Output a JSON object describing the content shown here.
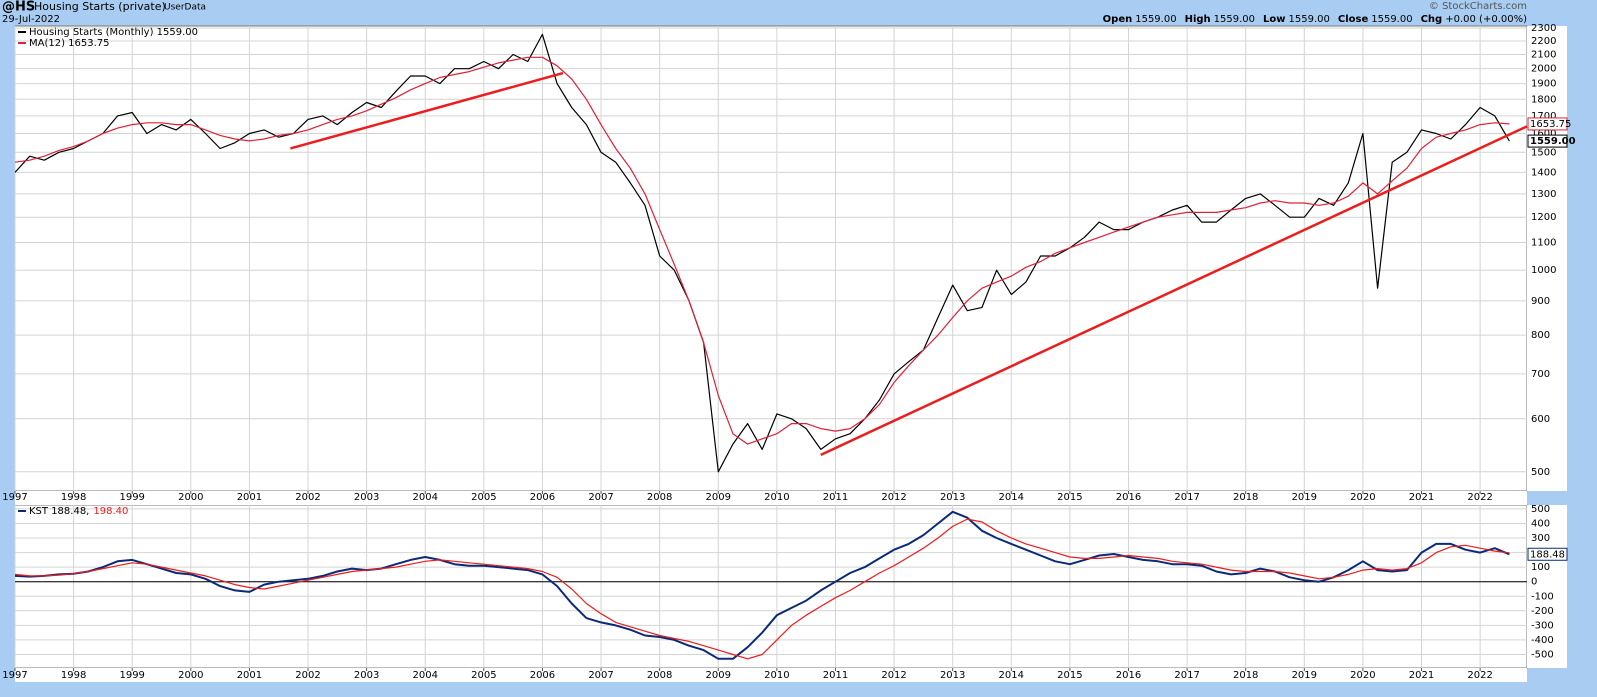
{
  "header": {
    "symbol": "@HS",
    "name": "Housing Starts (private)",
    "source": "UserData",
    "date": "29-Jul-2022",
    "brand": "© StockCharts.com",
    "quote": [
      {
        "label": "Open",
        "value": "1559.00"
      },
      {
        "label": "High",
        "value": "1559.00"
      },
      {
        "label": "Low",
        "value": "1559.00"
      },
      {
        "label": "Close",
        "value": "1559.00"
      },
      {
        "label": "Chg",
        "value": "+0.00 (+0.00%)"
      }
    ]
  },
  "chart_data": [
    {
      "type": "line",
      "log_scale": true,
      "grid": true,
      "x": [
        1997,
        1997.25,
        1997.5,
        1997.75,
        1998,
        1998.25,
        1998.5,
        1998.75,
        1999,
        1999.25,
        1999.5,
        1999.75,
        2000,
        2000.25,
        2000.5,
        2000.75,
        2001,
        2001.25,
        2001.5,
        2001.75,
        2002,
        2002.25,
        2002.5,
        2002.75,
        2003,
        2003.25,
        2003.5,
        2003.75,
        2004,
        2004.25,
        2004.5,
        2004.75,
        2005,
        2005.25,
        2005.5,
        2005.75,
        2006,
        2006.25,
        2006.5,
        2006.75,
        2007,
        2007.25,
        2007.5,
        2007.75,
        2008,
        2008.25,
        2008.5,
        2008.75,
        2009,
        2009.25,
        2009.5,
        2009.75,
        2010,
        2010.25,
        2010.5,
        2010.75,
        2011,
        2011.25,
        2011.5,
        2011.75,
        2012,
        2012.25,
        2012.5,
        2012.75,
        2013,
        2013.25,
        2013.5,
        2013.75,
        2014,
        2014.25,
        2014.5,
        2014.75,
        2015,
        2015.25,
        2015.5,
        2015.75,
        2016,
        2016.25,
        2016.5,
        2016.75,
        2017,
        2017.25,
        2017.5,
        2017.75,
        2018,
        2018.25,
        2018.5,
        2018.75,
        2019,
        2019.25,
        2019.5,
        2019.75,
        2020,
        2020.25,
        2020.5,
        2020.75,
        2021,
        2021.25,
        2021.5,
        2021.75,
        2022,
        2022.25,
        2022.5
      ],
      "xlim": [
        1997,
        2022.8
      ],
      "xticks": [
        1997,
        1998,
        1999,
        2000,
        2001,
        2002,
        2003,
        2004,
        2005,
        2006,
        2007,
        2008,
        2009,
        2010,
        2011,
        2012,
        2013,
        2014,
        2015,
        2016,
        2017,
        2018,
        2019,
        2020,
        2021,
        2022
      ],
      "ylim": [
        468,
        2316
      ],
      "yticks": [
        500,
        600,
        700,
        800,
        900,
        1000,
        1100,
        1200,
        1300,
        1400,
        1500,
        1600,
        1700,
        1800,
        1900,
        2000,
        2100,
        2200,
        2300
      ],
      "series": [
        {
          "name": "Housing Starts (Monthly) 1559.00",
          "color": "#000000",
          "last_label": "1559.00",
          "values": [
            1400,
            1480,
            1460,
            1500,
            1520,
            1560,
            1600,
            1700,
            1720,
            1600,
            1650,
            1620,
            1680,
            1600,
            1520,
            1550,
            1600,
            1620,
            1580,
            1600,
            1680,
            1700,
            1650,
            1720,
            1780,
            1750,
            1850,
            1950,
            1950,
            1900,
            2000,
            2000,
            2050,
            2000,
            2100,
            2050,
            2250,
            1900,
            1750,
            1650,
            1500,
            1450,
            1350,
            1250,
            1050,
            1000,
            900,
            780,
            500,
            550,
            590,
            540,
            610,
            600,
            580,
            540,
            560,
            570,
            600,
            640,
            700,
            730,
            760,
            850,
            950,
            870,
            880,
            1000,
            920,
            960,
            1050,
            1050,
            1080,
            1120,
            1180,
            1150,
            1150,
            1180,
            1200,
            1230,
            1250,
            1180,
            1180,
            1230,
            1280,
            1300,
            1250,
            1200,
            1200,
            1280,
            1250,
            1350,
            1600,
            940,
            1450,
            1500,
            1620,
            1600,
            1570,
            1650,
            1750,
            1700,
            1559
          ]
        },
        {
          "name": "MA(12) 1653.75",
          "color": "#e0203c",
          "last_label": "1653.75",
          "values": [
            1450,
            1460,
            1480,
            1510,
            1530,
            1560,
            1600,
            1630,
            1650,
            1660,
            1660,
            1650,
            1650,
            1620,
            1590,
            1570,
            1560,
            1570,
            1590,
            1600,
            1620,
            1650,
            1680,
            1700,
            1730,
            1770,
            1810,
            1860,
            1900,
            1940,
            1960,
            1980,
            2010,
            2040,
            2060,
            2080,
            2080,
            2020,
            1930,
            1800,
            1650,
            1520,
            1420,
            1300,
            1150,
            1020,
            900,
            780,
            650,
            570,
            550,
            560,
            570,
            590,
            590,
            580,
            575,
            580,
            600,
            630,
            680,
            720,
            760,
            800,
            850,
            900,
            940,
            960,
            980,
            1010,
            1030,
            1060,
            1080,
            1100,
            1120,
            1140,
            1160,
            1180,
            1200,
            1210,
            1220,
            1220,
            1220,
            1230,
            1240,
            1260,
            1270,
            1260,
            1260,
            1250,
            1260,
            1290,
            1350,
            1300,
            1360,
            1420,
            1520,
            1580,
            1600,
            1620,
            1650,
            1660,
            1653.75
          ]
        }
      ],
      "trendlines": [
        {
          "color": "#ee1c1c",
          "x": [
            2001.7,
            2006.35
          ],
          "y": [
            1520,
            1970
          ]
        },
        {
          "color": "#ee1c1c",
          "x": [
            2010.75,
            2022.8
          ],
          "y": [
            530,
            1640
          ]
        }
      ]
    },
    {
      "type": "line",
      "log_scale": false,
      "grid": true,
      "x": [
        1997,
        1997.25,
        1997.5,
        1997.75,
        1998,
        1998.25,
        1998.5,
        1998.75,
        1999,
        1999.25,
        1999.5,
        1999.75,
        2000,
        2000.25,
        2000.5,
        2000.75,
        2001,
        2001.25,
        2001.5,
        2001.75,
        2002,
        2002.25,
        2002.5,
        2002.75,
        2003,
        2003.25,
        2003.5,
        2003.75,
        2004,
        2004.25,
        2004.5,
        2004.75,
        2005,
        2005.25,
        2005.5,
        2005.75,
        2006,
        2006.25,
        2006.5,
        2006.75,
        2007,
        2007.25,
        2007.5,
        2007.75,
        2008,
        2008.25,
        2008.5,
        2008.75,
        2009,
        2009.25,
        2009.5,
        2009.75,
        2010,
        2010.25,
        2010.5,
        2010.75,
        2011,
        2011.25,
        2011.5,
        2011.75,
        2012,
        2012.25,
        2012.5,
        2012.75,
        2013,
        2013.25,
        2013.5,
        2013.75,
        2014,
        2014.25,
        2014.5,
        2014.75,
        2015,
        2015.25,
        2015.5,
        2015.75,
        2016,
        2016.25,
        2016.5,
        2016.75,
        2017,
        2017.25,
        2017.5,
        2017.75,
        2018,
        2018.25,
        2018.5,
        2018.75,
        2019,
        2019.25,
        2019.5,
        2019.75,
        2020,
        2020.25,
        2020.5,
        2020.75,
        2021,
        2021.25,
        2021.5,
        2021.75,
        2022,
        2022.25,
        2022.5
      ],
      "xlim": [
        1997,
        2022.8
      ],
      "xticks": [
        1997,
        1998,
        1999,
        2000,
        2001,
        2002,
        2003,
        2004,
        2005,
        2006,
        2007,
        2008,
        2009,
        2010,
        2011,
        2012,
        2013,
        2014,
        2015,
        2016,
        2017,
        2018,
        2019,
        2020,
        2021,
        2022
      ],
      "ylim": [
        -593,
        527
      ],
      "yticks": [
        -500,
        -400,
        -300,
        -200,
        -100,
        0,
        100,
        200,
        300,
        400,
        500
      ],
      "series": [
        {
          "name": "KST 188.48,",
          "color": "#0b2a78",
          "last_label": "188.48",
          "values": [
            40,
            35,
            40,
            50,
            55,
            70,
            100,
            140,
            150,
            120,
            90,
            60,
            50,
            20,
            -30,
            -60,
            -70,
            -20,
            0,
            10,
            20,
            40,
            70,
            90,
            80,
            90,
            120,
            150,
            170,
            150,
            120,
            110,
            110,
            100,
            90,
            80,
            50,
            -30,
            -150,
            -250,
            -280,
            -300,
            -330,
            -370,
            -380,
            -400,
            -440,
            -470,
            -530,
            -530,
            -450,
            -350,
            -230,
            -180,
            -130,
            -60,
            0,
            60,
            100,
            160,
            220,
            260,
            320,
            400,
            480,
            440,
            350,
            300,
            260,
            220,
            180,
            140,
            120,
            150,
            180,
            190,
            170,
            150,
            140,
            120,
            120,
            110,
            70,
            50,
            60,
            90,
            70,
            30,
            10,
            0,
            30,
            80,
            140,
            80,
            70,
            80,
            200,
            260,
            260,
            220,
            200,
            230,
            188.48
          ]
        },
        {
          "name": "198.40",
          "color": "#ee1c1c",
          "values": [
            50,
            40,
            40,
            45,
            55,
            70,
            90,
            110,
            130,
            120,
            100,
            80,
            60,
            40,
            10,
            -20,
            -40,
            -50,
            -30,
            -10,
            10,
            30,
            50,
            70,
            80,
            90,
            100,
            120,
            140,
            150,
            140,
            130,
            120,
            110,
            100,
            90,
            70,
            30,
            -50,
            -150,
            -220,
            -280,
            -310,
            -340,
            -370,
            -390,
            -410,
            -440,
            -470,
            -500,
            -530,
            -500,
            -400,
            -300,
            -230,
            -170,
            -110,
            -60,
            0,
            60,
            110,
            170,
            230,
            300,
            380,
            430,
            410,
            350,
            300,
            260,
            230,
            200,
            170,
            160,
            160,
            170,
            180,
            170,
            160,
            140,
            130,
            120,
            100,
            80,
            70,
            70,
            70,
            60,
            40,
            20,
            30,
            50,
            80,
            90,
            80,
            90,
            130,
            200,
            240,
            250,
            230,
            210,
            198.4
          ]
        }
      ]
    }
  ]
}
